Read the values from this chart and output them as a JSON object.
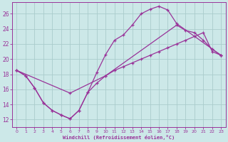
{
  "xlabel": "Windchill (Refroidissement éolien,°C)",
  "bg_color": "#cce8e8",
  "grid_color": "#aacccc",
  "line_color": "#993399",
  "xlim": [
    -0.5,
    23.5
  ],
  "ylim": [
    11.0,
    27.5
  ],
  "xticks": [
    0,
    1,
    2,
    3,
    4,
    5,
    6,
    7,
    8,
    9,
    10,
    11,
    12,
    13,
    14,
    15,
    16,
    17,
    18,
    19,
    20,
    21,
    22,
    23
  ],
  "yticks": [
    12,
    14,
    16,
    18,
    20,
    22,
    24,
    26
  ],
  "line1_x": [
    0,
    1,
    2,
    3,
    4,
    5,
    6,
    7,
    8,
    9,
    10,
    11,
    12,
    13,
    14,
    15,
    16,
    17,
    18,
    23
  ],
  "line1_y": [
    18.5,
    17.8,
    16.2,
    14.2,
    13.2,
    12.6,
    12.1,
    13.2,
    15.6,
    18.2,
    20.6,
    22.5,
    23.2,
    24.5,
    26.0,
    26.6,
    27.0,
    26.5,
    24.7,
    20.5
  ],
  "line2_x": [
    0,
    6,
    10,
    18,
    19,
    20,
    21,
    22,
    23
  ],
  "line2_y": [
    18.5,
    15.5,
    17.8,
    24.5,
    23.8,
    23.5,
    22.5,
    21.3,
    20.5
  ],
  "line3_x": [
    0,
    1,
    2,
    3,
    4,
    5,
    6,
    7,
    8,
    9,
    10,
    11,
    12,
    13,
    14,
    15,
    16,
    17,
    18,
    19,
    20,
    21,
    22,
    23
  ],
  "line3_y": [
    18.5,
    17.8,
    16.2,
    14.2,
    13.2,
    12.6,
    12.1,
    13.2,
    15.6,
    16.8,
    17.8,
    18.5,
    19.0,
    19.5,
    20.0,
    20.5,
    21.0,
    21.5,
    22.0,
    22.5,
    23.0,
    23.5,
    21.0,
    20.5
  ]
}
